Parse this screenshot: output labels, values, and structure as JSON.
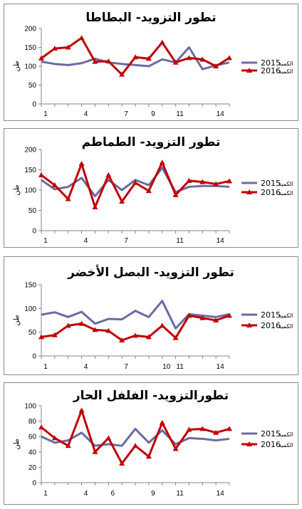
{
  "chart_data": [
    {
      "type": "line",
      "title": "تطور التزويد- البطاطا",
      "ylabel": "طن",
      "ylim": [
        0,
        200
      ],
      "yticks": [
        0,
        50,
        100,
        150,
        200
      ],
      "x": [
        1,
        2,
        3,
        4,
        5,
        6,
        7,
        8,
        9,
        10,
        11,
        12,
        13,
        14,
        15
      ],
      "xticks": [
        1,
        4,
        7,
        9,
        11,
        14
      ],
      "legend_position": "right",
      "series": [
        {
          "name": "الكمية 2015",
          "color": "#6b6ba3",
          "marker": "none",
          "values": [
            112,
            106,
            103,
            108,
            120,
            110,
            106,
            103,
            100,
            118,
            110,
            150,
            92,
            102,
            110
          ]
        },
        {
          "name": "الكمية 2016",
          "color": "#c00000",
          "marker": "triangle",
          "values": [
            121,
            147,
            150,
            175,
            112,
            113,
            78,
            124,
            120,
            163,
            110,
            122,
            118,
            100,
            122
          ]
        }
      ]
    },
    {
      "type": "line",
      "title": "تطور التزويد- الطماطم",
      "ylabel": "طن",
      "ylim": [
        0,
        200
      ],
      "yticks": [
        0,
        50,
        100,
        150,
        200
      ],
      "x": [
        1,
        2,
        3,
        4,
        5,
        6,
        7,
        8,
        9,
        10,
        11,
        12,
        13,
        14,
        15
      ],
      "xticks": [
        1,
        4,
        7,
        11,
        14
      ],
      "legend_position": "right",
      "series": [
        {
          "name": "الكمية 2015",
          "color": "#6b6ba3",
          "marker": "none",
          "values": [
            125,
            102,
            108,
            130,
            85,
            125,
            100,
            125,
            112,
            155,
            95,
            108,
            110,
            110,
            108
          ]
        },
        {
          "name": "الكمية 2016",
          "color": "#c00000",
          "marker": "triangle",
          "values": [
            137,
            112,
            78,
            165,
            58,
            137,
            72,
            118,
            98,
            168,
            88,
            123,
            120,
            115,
            122
          ]
        }
      ]
    },
    {
      "type": "line",
      "title": "تطور التزويد- البصل الأخضر",
      "ylabel": "طن",
      "ylim": [
        0,
        150
      ],
      "yticks": [
        0,
        50,
        100,
        150
      ],
      "x": [
        1,
        2,
        3,
        4,
        5,
        6,
        7,
        8,
        9,
        10,
        11,
        12,
        13,
        14,
        15
      ],
      "xticks": [
        1,
        4,
        7,
        10,
        11,
        14
      ],
      "legend_position": "right",
      "series": [
        {
          "name": "الكمية 2015",
          "color": "#6b6ba3",
          "marker": "none",
          "values": [
            87,
            92,
            82,
            93,
            68,
            78,
            77,
            95,
            82,
            116,
            58,
            88,
            85,
            82,
            88
          ]
        },
        {
          "name": "الكمية 2016",
          "color": "#c00000",
          "marker": "triangle",
          "values": [
            40,
            44,
            64,
            68,
            55,
            53,
            33,
            43,
            40,
            64,
            38,
            85,
            80,
            75,
            85
          ]
        }
      ]
    },
    {
      "type": "line",
      "title": "تطورالتزويد- الفلفل الحار",
      "ylabel": "طن",
      "ylim": [
        0,
        100
      ],
      "yticks": [
        0,
        20,
        40,
        60,
        80,
        100
      ],
      "x": [
        1,
        2,
        3,
        4,
        5,
        6,
        7,
        8,
        9,
        10,
        11,
        12,
        13,
        14,
        15
      ],
      "xticks": [
        1,
        4,
        6,
        9,
        11,
        14
      ],
      "legend_position": "right",
      "series": [
        {
          "name": "الكمية 2015",
          "color": "#6b6ba3",
          "marker": "none",
          "values": [
            60,
            52,
            55,
            65,
            48,
            50,
            48,
            70,
            52,
            68,
            50,
            58,
            57,
            55,
            57
          ]
        },
        {
          "name": "الكمية 2016",
          "color": "#c00000",
          "marker": "triangle",
          "values": [
            72,
            58,
            48,
            94,
            40,
            58,
            25,
            48,
            34,
            78,
            44,
            69,
            70,
            65,
            70
          ]
        }
      ]
    }
  ]
}
